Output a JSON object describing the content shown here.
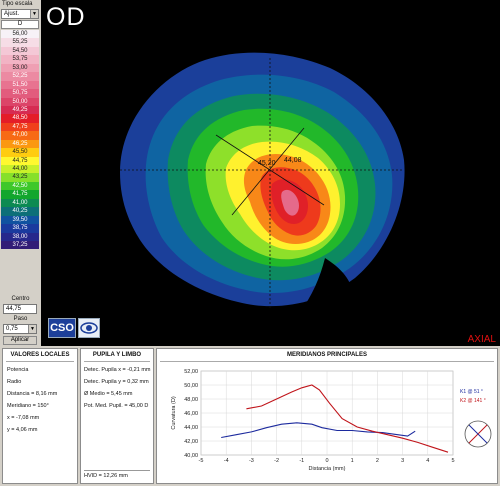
{
  "eye": "OD",
  "mode_label": "AXIAL",
  "scale": {
    "title": "Tipo escala",
    "type_value": "Ajust.",
    "header": "D",
    "rows": [
      {
        "value": "56,00",
        "color": "#f7f2f7"
      },
      {
        "value": "55,25",
        "color": "#f6dde6"
      },
      {
        "value": "54,50",
        "color": "#f4c8d6"
      },
      {
        "value": "53,75",
        "color": "#f2b3c4"
      },
      {
        "value": "53,00",
        "color": "#ef9fb3"
      },
      {
        "value": "52,25",
        "color": "#ec8aa2"
      },
      {
        "value": "51,50",
        "color": "#e87390"
      },
      {
        "value": "50,75",
        "color": "#e25c7d"
      },
      {
        "value": "50,00",
        "color": "#dc4468"
      },
      {
        "value": "49,25",
        "color": "#d62b52"
      },
      {
        "value": "48,50",
        "color": "#e41d28"
      },
      {
        "value": "47,75",
        "color": "#f0401c"
      },
      {
        "value": "47,00",
        "color": "#f76a14"
      },
      {
        "value": "46,25",
        "color": "#fb9810"
      },
      {
        "value": "45,50",
        "color": "#ffcc10"
      },
      {
        "value": "44,75",
        "color": "#fff830"
      },
      {
        "value": "44,00",
        "color": "#c8f02a"
      },
      {
        "value": "43,25",
        "color": "#86e02a"
      },
      {
        "value": "42,50",
        "color": "#3ec82a"
      },
      {
        "value": "41,75",
        "color": "#12a62e"
      },
      {
        "value": "41,00",
        "color": "#0c8a52"
      },
      {
        "value": "40,25",
        "color": "#0c6f78"
      },
      {
        "value": "39,50",
        "color": "#1052a0"
      },
      {
        "value": "38,75",
        "color": "#1a3a9e"
      },
      {
        "value": "38,00",
        "color": "#26288c"
      },
      {
        "value": "37,25",
        "color": "#321c76"
      }
    ],
    "centro_label": "Centro",
    "centro_value": "44,75",
    "paso_label": "Paso",
    "paso_value": "0,75",
    "apply_label": "Aplicar"
  },
  "map": {
    "k1_label": "45,20",
    "k2_label": "44,08"
  },
  "logo": {
    "text": "CSO"
  },
  "valores_locales": {
    "title": "VALORES LOCALES",
    "potencia": "Potencia",
    "radio": "Radio",
    "distancia": "Distancia   = 8,16 mm",
    "meridiano": "Meridiano  = 150°",
    "x": "x               = -7,08 mm",
    "y": "y               = 4,06 mm"
  },
  "pupila": {
    "title": "PUPILA Y LIMBO",
    "detec_x": "Detec. Pupila x = -0,21 mm",
    "detec_y": "Detec. Pupila y = 0,32 mm",
    "diam_medio": "Ø Medio = 5,45 mm",
    "pot_med": "Pot. Med. Pupil. = 45,00 D",
    "hvid": "HVID = 12,26 mm"
  },
  "meridianos": {
    "title": "MERIDIANOS PRINCIPALES",
    "legend": {
      "k1": "K1 @ 51 °",
      "k2": "K2 @ 141 °"
    }
  },
  "chart_data": {
    "type": "line",
    "title": "MERIDIANOS PRINCIPALES",
    "xlabel": "Distancia (mm)",
    "ylabel": "Curvatura (D)",
    "xlim": [
      -5,
      5
    ],
    "ylim": [
      40,
      52
    ],
    "x_ticks": [
      -5,
      -4,
      -3,
      -2,
      -1,
      0,
      1,
      2,
      3,
      4,
      5
    ],
    "y_ticks": [
      "40,00",
      "42,00",
      "44,00",
      "46,00",
      "48,00",
      "50,00",
      "52,00"
    ],
    "grid": true,
    "series": [
      {
        "name": "K1 @ 51 °",
        "color": "#1c2a9e",
        "points": [
          [
            -4.2,
            42.5
          ],
          [
            -3.6,
            42.9
          ],
          [
            -3.0,
            43.3
          ],
          [
            -2.4,
            43.9
          ],
          [
            -1.8,
            44.4
          ],
          [
            -1.2,
            44.6
          ],
          [
            -0.6,
            44.4
          ],
          [
            -0.2,
            43.9
          ],
          [
            0.4,
            43.5
          ],
          [
            1.0,
            43.5
          ],
          [
            1.6,
            43.3
          ],
          [
            2.2,
            43.2
          ],
          [
            2.8,
            42.9
          ],
          [
            3.2,
            42.7
          ],
          [
            3.5,
            43.4
          ]
        ]
      },
      {
        "name": "K2 @ 141 °",
        "color": "#c0141a",
        "points": [
          [
            -3.2,
            46.6
          ],
          [
            -2.6,
            47.0
          ],
          [
            -2.0,
            48.0
          ],
          [
            -1.4,
            49.0
          ],
          [
            -1.0,
            49.6
          ],
          [
            -0.6,
            50.0
          ],
          [
            -0.3,
            49.3
          ],
          [
            0.1,
            47.4
          ],
          [
            0.6,
            45.2
          ],
          [
            1.2,
            44.0
          ],
          [
            1.8,
            43.4
          ],
          [
            2.4,
            42.9
          ],
          [
            3.0,
            42.4
          ],
          [
            3.6,
            41.8
          ],
          [
            4.2,
            41.1
          ],
          [
            4.8,
            40.4
          ]
        ]
      }
    ]
  }
}
